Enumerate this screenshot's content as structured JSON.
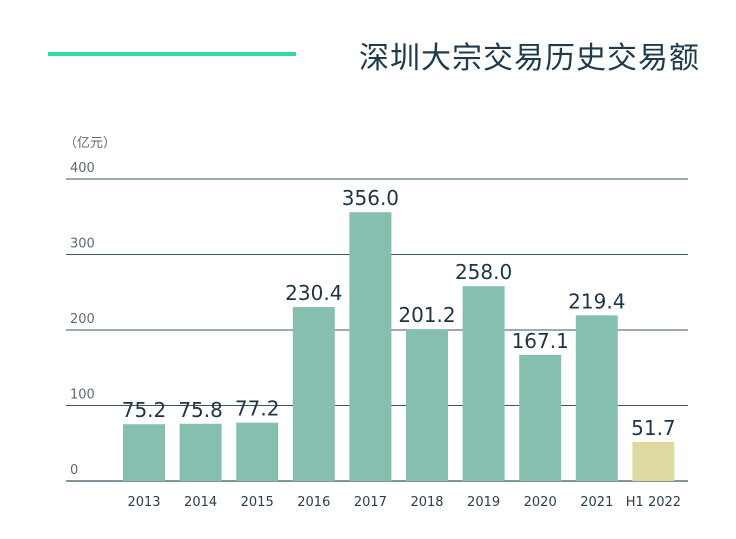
{
  "chart_data": {
    "type": "bar",
    "title": "深圳大宗交易历史交易额",
    "unit_label": "（亿元）",
    "categories": [
      "2013",
      "2014",
      "2015",
      "2016",
      "2017",
      "2018",
      "2019",
      "2020",
      "2021",
      "H1 2022"
    ],
    "values": [
      75.2,
      75.8,
      77.2,
      230.4,
      356.0,
      201.2,
      258.0,
      167.1,
      219.4,
      51.7
    ],
    "value_labels": [
      "75.2",
      "75.8",
      "77.2",
      "230.4",
      "356.0",
      "201.2",
      "258.0",
      "167.1",
      "219.4",
      "51.7"
    ],
    "ylim": [
      0,
      400
    ],
    "yticks": [
      "0",
      "100",
      "200",
      "300",
      "400"
    ],
    "grid": true,
    "legend": "none",
    "colors": {
      "bar": "#86bfb0",
      "bar_highlight": "#ddd9a1",
      "accent_line": "#2fdba0",
      "gridline": "#3a5566",
      "title": "#1e3a4c"
    },
    "highlight_index": 9
  }
}
